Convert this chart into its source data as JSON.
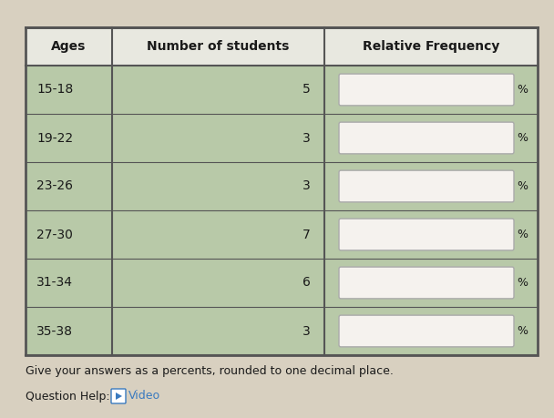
{
  "headers": [
    "Ages",
    "Number of students",
    "Relative Frequency"
  ],
  "ages": [
    "15-18",
    "19-22",
    "23-26",
    "27-30",
    "31-34",
    "35-38"
  ],
  "num_students": [
    5,
    3,
    3,
    7,
    6,
    3
  ],
  "table_bg": "#b8c9a8",
  "box_fill": "#f5f2ee",
  "box_border": "#aaaaaa",
  "text_color": "#1a1a1a",
  "footer_text": "Give your answers as a percents, rounded to one decimal place.",
  "footer_help": "Question Help:",
  "footer_video": "Video",
  "footer_icon_color": "#3a7abf",
  "figure_bg": "#d8d0c0",
  "table_border": "#555555",
  "header_bg": "#e8e8e0"
}
